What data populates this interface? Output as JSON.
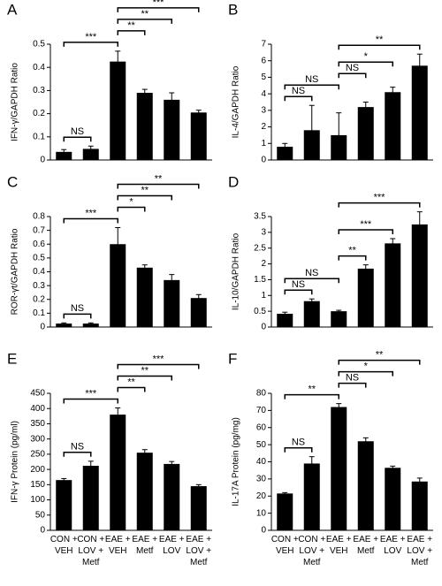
{
  "chart_data": [
    {
      "type": "bar",
      "title": "A",
      "y_label": "IFN-γ/GAPDH Ratio",
      "categories": [
        null,
        null,
        null,
        null,
        null,
        null
      ],
      "values": [
        0.035,
        0.048,
        0.425,
        0.29,
        0.26,
        0.205
      ],
      "errors": [
        0.01,
        0.012,
        0.045,
        0.015,
        0.03,
        0.01
      ],
      "color": "#000000",
      "ylim": [
        0,
        0.5
      ],
      "yticks": [
        0,
        0.1,
        0.2,
        0.3,
        0.4,
        0.5
      ],
      "annotations": [
        {
          "text": "NS",
          "between": [
            0,
            1
          ]
        },
        {
          "text": "***",
          "between": [
            0,
            2
          ]
        },
        {
          "text": "**",
          "between": [
            2,
            3
          ]
        },
        {
          "text": "**",
          "between": [
            2,
            4
          ]
        },
        {
          "text": "***",
          "between": [
            2,
            5
          ]
        }
      ]
    },
    {
      "type": "bar",
      "title": "B",
      "y_label": "IL-4/GAPDH Ratio",
      "categories": [
        null,
        null,
        null,
        null,
        null,
        null
      ],
      "values": [
        0.8,
        1.8,
        1.5,
        3.2,
        4.1,
        5.7
      ],
      "errors": [
        0.2,
        1.5,
        1.35,
        0.3,
        0.3,
        0.7
      ],
      "color": "#000000",
      "ylim": [
        0,
        7
      ],
      "yticks": [
        0,
        1,
        2,
        3,
        4,
        5,
        6,
        7
      ],
      "annotations": [
        {
          "text": "NS",
          "between": [
            0,
            1
          ]
        },
        {
          "text": "NS",
          "between": [
            0,
            2
          ]
        },
        {
          "text": "NS",
          "between": [
            2,
            3
          ]
        },
        {
          "text": "*",
          "between": [
            2,
            4
          ]
        },
        {
          "text": "**",
          "between": [
            2,
            5
          ]
        }
      ]
    },
    {
      "type": "bar",
      "title": "C",
      "y_label": "ROR-γt/GAPDH Ratio",
      "categories": [
        null,
        null,
        null,
        null,
        null,
        null
      ],
      "values": [
        0.025,
        0.025,
        0.6,
        0.43,
        0.34,
        0.21
      ],
      "errors": [
        0.005,
        0.005,
        0.12,
        0.02,
        0.04,
        0.025
      ],
      "color": "#000000",
      "ylim": [
        0,
        0.8
      ],
      "yticks": [
        0,
        0.1,
        0.2,
        0.3,
        0.4,
        0.5,
        0.6,
        0.7,
        0.8
      ],
      "annotations": [
        {
          "text": "NS",
          "between": [
            0,
            1
          ]
        },
        {
          "text": "***",
          "between": [
            0,
            2
          ]
        },
        {
          "text": "*",
          "between": [
            2,
            3
          ]
        },
        {
          "text": "**",
          "between": [
            2,
            4
          ]
        },
        {
          "text": "**",
          "between": [
            2,
            5
          ]
        }
      ]
    },
    {
      "type": "bar",
      "title": "D",
      "y_label": "IL-10/GAPDH Ratio",
      "categories": [
        null,
        null,
        null,
        null,
        null,
        null
      ],
      "values": [
        0.42,
        0.82,
        0.5,
        1.85,
        2.65,
        3.25
      ],
      "errors": [
        0.05,
        0.07,
        0.03,
        0.12,
        0.15,
        0.4
      ],
      "color": "#000000",
      "ylim": [
        0,
        3.5
      ],
      "yticks": [
        0,
        0.5,
        1,
        1.5,
        2,
        2.5,
        3,
        3.5
      ],
      "annotations": [
        {
          "text": "NS",
          "between": [
            0,
            1
          ]
        },
        {
          "text": "NS",
          "between": [
            0,
            2
          ]
        },
        {
          "text": "**",
          "between": [
            2,
            3
          ]
        },
        {
          "text": "***",
          "between": [
            2,
            4
          ]
        },
        {
          "text": "***",
          "between": [
            2,
            5
          ]
        }
      ]
    },
    {
      "type": "bar",
      "title": "E",
      "y_label": "IFN-γ Protein (pg/ml)",
      "categories": [
        "CON +\nVEH",
        "CON +\nLOV +\nMetf",
        "EAE +\nVEH",
        "EAE +\nMetf",
        "EAE +\nLOV",
        "EAE +\nLOV +\nMetf"
      ],
      "values": [
        165,
        212,
        380,
        255,
        218,
        145
      ],
      "errors": [
        5,
        15,
        22,
        10,
        8,
        5
      ],
      "color": "#000000",
      "ylim": [
        0,
        450
      ],
      "yticks": [
        0,
        50,
        100,
        150,
        200,
        250,
        300,
        350,
        400,
        450
      ],
      "annotations": [
        {
          "text": "NS",
          "between": [
            0,
            1
          ]
        },
        {
          "text": "***",
          "between": [
            0,
            2
          ]
        },
        {
          "text": "**",
          "between": [
            2,
            3
          ]
        },
        {
          "text": "**",
          "between": [
            2,
            4
          ]
        },
        {
          "text": "***",
          "between": [
            2,
            5
          ]
        }
      ]
    },
    {
      "type": "bar",
      "title": "F",
      "y_label": "IL-17A Protein (pg/mg)",
      "categories": [
        "CON +\nVEH",
        "CON +\nLOV +\nMetf",
        "EAE +\nVEH",
        "EAE +\nMetf",
        "EAE +\nLOV",
        "EAE +\nLOV +\nMetf"
      ],
      "values": [
        21.5,
        39,
        72,
        52,
        36.5,
        28.5
      ],
      "errors": [
        0.5,
        4,
        2,
        2,
        1,
        2
      ],
      "color": "#000000",
      "ylim": [
        0,
        80
      ],
      "yticks": [
        0,
        10,
        20,
        30,
        40,
        50,
        60,
        70,
        80
      ],
      "annotations": [
        {
          "text": "NS",
          "between": [
            0,
            1
          ]
        },
        {
          "text": "**",
          "between": [
            0,
            2
          ]
        },
        {
          "text": "NS",
          "between": [
            2,
            3
          ]
        },
        {
          "text": "*",
          "between": [
            2,
            4
          ]
        },
        {
          "text": "**",
          "between": [
            2,
            5
          ]
        }
      ]
    }
  ]
}
